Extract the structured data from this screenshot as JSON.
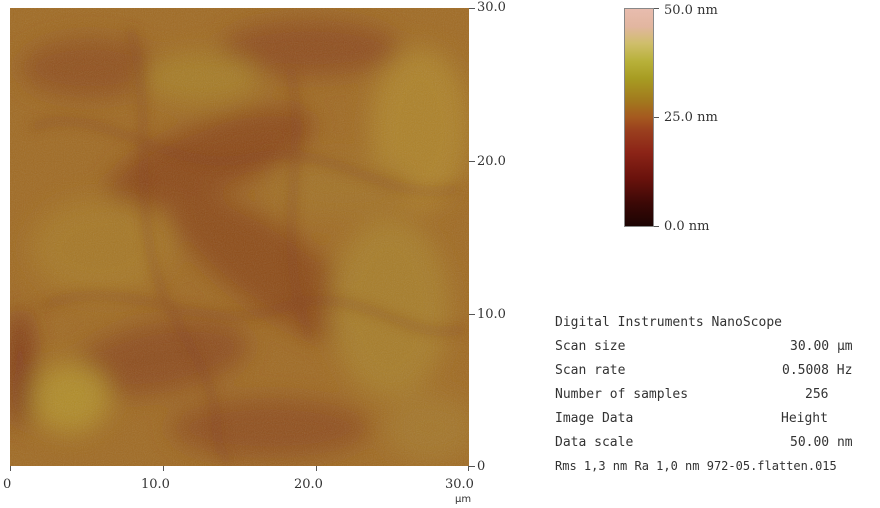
{
  "image": {
    "type": "AFM height map",
    "colors": {
      "base": "#a06a22",
      "dark_streak": "#8a3e18",
      "light_patch": "#b08a2a"
    }
  },
  "x_axis": {
    "ticks": [
      "0",
      "10.0",
      "20.0",
      "30.0"
    ],
    "unit": "µm"
  },
  "y_axis": {
    "ticks": [
      "30.0",
      "20.0",
      "10.0",
      "0"
    ]
  },
  "colorbar": {
    "max_label": "50.0 nm",
    "mid_label": "25.0 nm",
    "min_label": "0.0 nm"
  },
  "info": {
    "title": "Digital Instruments NanoScope",
    "rows": [
      {
        "label": "Scan size",
        "value": "30.00 µm"
      },
      {
        "label": "Scan rate",
        "value": "0.5008 Hz"
      },
      {
        "label": "Number of samples",
        "value": "256"
      },
      {
        "label": "Image Data",
        "value": "Height"
      },
      {
        "label": "Data scale",
        "value": "50.00 nm"
      }
    ],
    "footer": "Rms 1,3 nm  Ra 1,0 nm  972-05.flatten.015"
  }
}
